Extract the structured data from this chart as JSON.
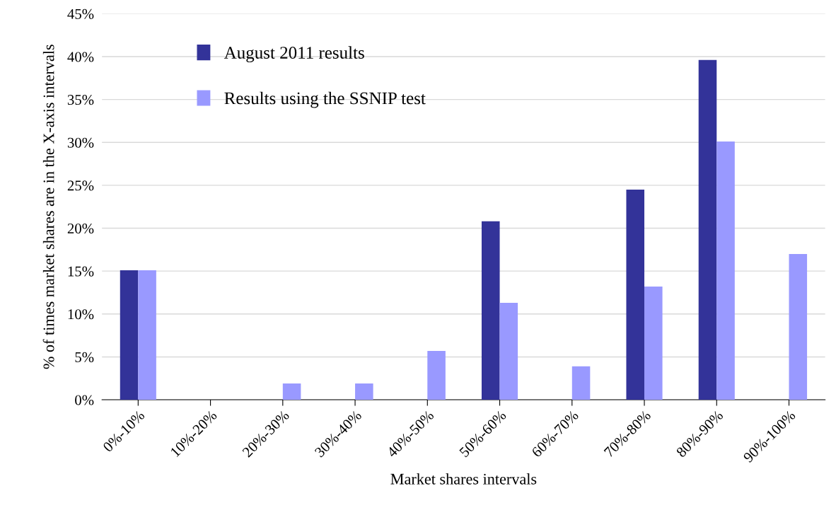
{
  "chart_data": {
    "type": "bar",
    "xlabel": "Market shares intervals",
    "ylabel": "% of times market shares are in the X-axis intervals",
    "categories": [
      "0%-10%",
      "10%-20%",
      "20%-30%",
      "30%-40%",
      "40%-50%",
      "50%-60%",
      "60%-70%",
      "70%-80%",
      "80%-90%",
      "90%-100%"
    ],
    "series": [
      {
        "name": "August 2011 results",
        "color": "#333399",
        "values": [
          15.1,
          0,
          0,
          0,
          0,
          20.8,
          0,
          24.5,
          39.6,
          0
        ]
      },
      {
        "name": "Results using the SSNIP test",
        "color": "#9999ff",
        "values": [
          15.1,
          0,
          1.9,
          1.9,
          5.7,
          11.3,
          3.9,
          13.2,
          30.1,
          17.0
        ]
      }
    ],
    "ylim": [
      0,
      45
    ],
    "yticks": [
      {
        "value": 0,
        "label": "0%"
      },
      {
        "value": 5,
        "label": "5%"
      },
      {
        "value": 10,
        "label": "10%"
      },
      {
        "value": 15,
        "label": "15%"
      },
      {
        "value": 20,
        "label": "20%"
      },
      {
        "value": 25,
        "label": "25%"
      },
      {
        "value": 30,
        "label": "30%"
      },
      {
        "value": 35,
        "label": "35%"
      },
      {
        "value": 40,
        "label": "40%"
      },
      {
        "value": 45,
        "label": "45%"
      }
    ],
    "grid": "y",
    "legend": "top left"
  }
}
